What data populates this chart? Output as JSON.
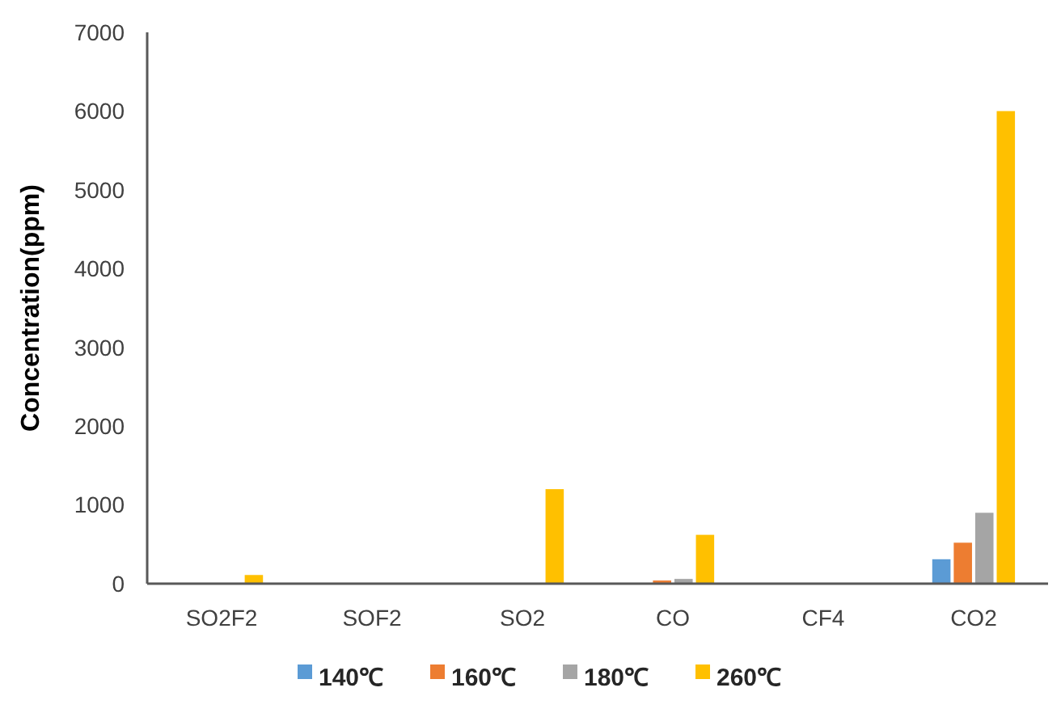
{
  "chart_data": {
    "type": "bar",
    "ylabel": "Concentration(ppm)",
    "categories": [
      "SO2F2",
      "SOF2",
      "SO2",
      "CO",
      "CF4",
      "CO2"
    ],
    "series": [
      {
        "name": "140℃",
        "color": "#5b9bd5",
        "values": [
          0,
          0,
          0,
          0,
          0,
          310
        ]
      },
      {
        "name": "160℃",
        "color": "#ed7d31",
        "values": [
          0,
          0,
          0,
          40,
          0,
          520
        ]
      },
      {
        "name": "180℃",
        "color": "#a5a5a5",
        "values": [
          0,
          0,
          0,
          60,
          0,
          900
        ]
      },
      {
        "name": "260℃",
        "color": "#ffc000",
        "values": [
          110,
          0,
          1200,
          620,
          0,
          6000
        ]
      }
    ],
    "ylim": [
      0,
      7000
    ],
    "yticks": [
      0,
      1000,
      2000,
      3000,
      4000,
      5000,
      6000,
      7000
    ],
    "grid": false,
    "legend": "bottom"
  }
}
